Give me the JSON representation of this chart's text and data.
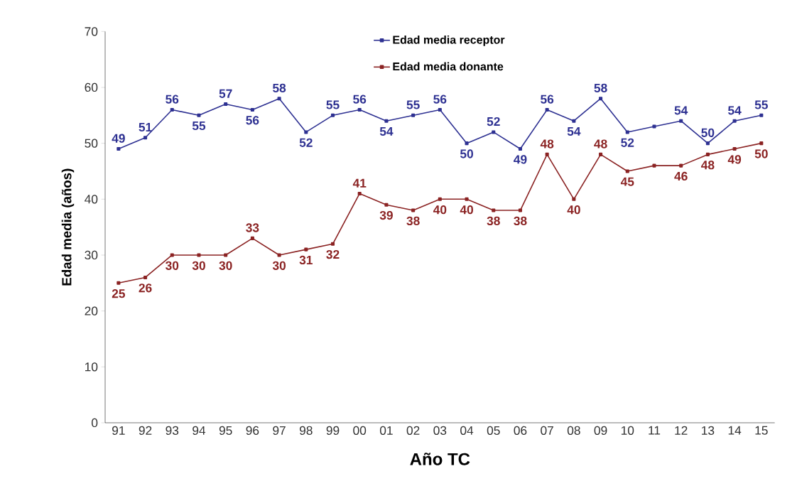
{
  "chart_data": {
    "type": "line",
    "xlabel": "Año TC",
    "ylabel": "Edad media (años)",
    "categories": [
      "91",
      "92",
      "93",
      "94",
      "95",
      "96",
      "97",
      "98",
      "99",
      "00",
      "01",
      "02",
      "03",
      "04",
      "05",
      "06",
      "07",
      "08",
      "09",
      "10",
      "11",
      "12",
      "13",
      "14",
      "15"
    ],
    "series": [
      {
        "name": "Edad media receptor",
        "color": "#2e3192",
        "values": [
          49,
          51,
          56,
          55,
          57,
          56,
          58,
          52,
          55,
          56,
          54,
          55,
          56,
          50,
          52,
          49,
          56,
          54,
          58,
          52,
          53,
          54,
          50,
          54,
          55
        ],
        "value_labels": [
          "49",
          "51",
          "56",
          "55",
          "57",
          "56",
          "58",
          "52",
          "55",
          "56",
          "54",
          "55",
          "56",
          "50",
          "52",
          "49",
          "56",
          "54",
          "58",
          "52",
          null,
          "54",
          "50",
          "54",
          "55"
        ]
      },
      {
        "name": "Edad media donante",
        "color": "#8b2323",
        "values": [
          25,
          26,
          30,
          30,
          30,
          33,
          30,
          31,
          32,
          41,
          39,
          38,
          40,
          40,
          38,
          38,
          48,
          40,
          48,
          45,
          46,
          46,
          48,
          49,
          50
        ],
        "value_labels": [
          "25",
          "26",
          "30",
          "30",
          "30",
          "33",
          "30",
          "31",
          "32",
          "41",
          "39",
          "38",
          "40",
          "40",
          "38",
          "38",
          "48",
          "40",
          "48",
          "45",
          null,
          "46",
          "48",
          "49",
          "50"
        ]
      }
    ],
    "ylim": [
      0,
      70
    ],
    "yticks": [
      0,
      10,
      20,
      30,
      40,
      50,
      60,
      70
    ],
    "legend": "top",
    "marker": "square",
    "line_style": "solid"
  }
}
